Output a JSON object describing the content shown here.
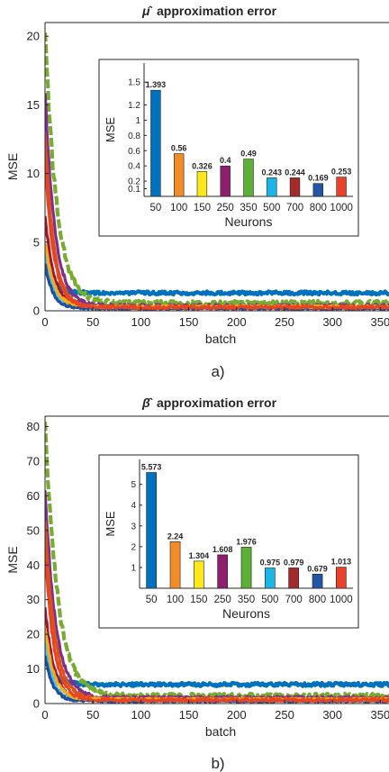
{
  "figure": {
    "label_a": "a)",
    "label_b": "b)"
  },
  "chart_data": [
    {
      "id": "a_main",
      "type": "line",
      "title_symbol": "μ̂",
      "title_rest": "approximation error",
      "xlabel": "batch",
      "ylabel": "MSE",
      "xlim": [
        0,
        360
      ],
      "ylim": [
        0,
        21
      ],
      "xticks": [
        0,
        50,
        100,
        150,
        200,
        250,
        300,
        350
      ],
      "yticks": [
        0,
        5,
        10,
        15,
        20
      ],
      "series": [
        {
          "color": "#0072BD",
          "start": 3.0,
          "tail": 1.3,
          "decay": 10,
          "noise": 0.12
        },
        {
          "color": "#77AC30",
          "start": 20.5,
          "tail": 0.55,
          "decay": 12,
          "noise": 0.18
        },
        {
          "color": "#7E2F8E",
          "start": 16.0,
          "tail": 0.35,
          "decay": 10,
          "noise": 0.12
        },
        {
          "color": "#D95319",
          "start": 13.0,
          "tail": 0.28,
          "decay": 9,
          "noise": 0.1
        },
        {
          "color": "#4DBEEE",
          "start": 4.5,
          "tail": 0.25,
          "decay": 8,
          "noise": 0.08
        },
        {
          "color": "#A2142F",
          "start": 7.0,
          "tail": 0.24,
          "decay": 9,
          "noise": 0.08
        },
        {
          "color": "#1F4E9E",
          "start": 3.5,
          "tail": 0.17,
          "decay": 8,
          "noise": 0.06
        },
        {
          "color": "#EDB120",
          "start": 5.0,
          "tail": 0.3,
          "decay": 9,
          "noise": 0.08
        },
        {
          "color": "#E8441F",
          "start": 11.0,
          "tail": 0.25,
          "decay": 9,
          "noise": 0.1
        }
      ]
    },
    {
      "id": "a_inset",
      "type": "bar",
      "xlabel": "Neurons",
      "ylabel": "MSE",
      "ylim": [
        0,
        1.75
      ],
      "yticks": [
        0.1,
        0.2,
        0.4,
        0.6,
        0.8,
        1,
        1.2,
        1.5
      ],
      "categories": [
        "50",
        "100",
        "150",
        "250",
        "350",
        "500",
        "700",
        "800",
        "1000"
      ],
      "values": [
        1.393,
        0.56,
        0.326,
        0.4,
        0.49,
        0.243,
        0.244,
        0.169,
        0.253
      ],
      "value_labels": [
        "1.393",
        "0.56",
        "0.326",
        "0.4",
        "0.49",
        "0.243",
        "0.244",
        "0.169",
        "0.253"
      ],
      "colors": [
        "#0072BD",
        "#F28C28",
        "#FFE81A",
        "#8E1E6E",
        "#5BB035",
        "#1AB6E8",
        "#A52A2A",
        "#2456A6",
        "#E8432A"
      ]
    },
    {
      "id": "b_main",
      "type": "line",
      "title_symbol": "β̂",
      "title_rest": "approximation error",
      "xlabel": "batch",
      "ylabel": "MSE",
      "xlim": [
        0,
        360
      ],
      "ylim": [
        0,
        83
      ],
      "xticks": [
        0,
        50,
        100,
        150,
        200,
        250,
        300,
        350
      ],
      "yticks": [
        0,
        10,
        20,
        30,
        40,
        50,
        60,
        70,
        80
      ],
      "series": [
        {
          "color": "#0072BD",
          "start": 13,
          "tail": 5.5,
          "decay": 10,
          "noise": 0.5
        },
        {
          "color": "#77AC30",
          "start": 82,
          "tail": 2.2,
          "decay": 13,
          "noise": 0.7
        },
        {
          "color": "#7E2F8E",
          "start": 62,
          "tail": 1.6,
          "decay": 11,
          "noise": 0.5
        },
        {
          "color": "#D95319",
          "start": 53,
          "tail": 1.3,
          "decay": 10,
          "noise": 0.4
        },
        {
          "color": "#4DBEEE",
          "start": 18,
          "tail": 1.0,
          "decay": 8,
          "noise": 0.3
        },
        {
          "color": "#A2142F",
          "start": 28,
          "tail": 1.0,
          "decay": 9,
          "noise": 0.3
        },
        {
          "color": "#1F4E9E",
          "start": 14,
          "tail": 0.7,
          "decay": 8,
          "noise": 0.25
        },
        {
          "color": "#EDB120",
          "start": 22,
          "tail": 1.2,
          "decay": 9,
          "noise": 0.3
        },
        {
          "color": "#E8441F",
          "start": 45,
          "tail": 1.0,
          "decay": 9,
          "noise": 0.4
        }
      ]
    },
    {
      "id": "b_inset",
      "type": "bar",
      "xlabel": "Neurons",
      "ylabel": "MSE",
      "ylim": [
        0,
        6.2
      ],
      "yticks": [
        1,
        2,
        3,
        4,
        5
      ],
      "categories": [
        "50",
        "100",
        "150",
        "250",
        "350",
        "500",
        "700",
        "800",
        "1000"
      ],
      "values": [
        5.573,
        2.24,
        1.304,
        1.608,
        1.976,
        0.975,
        0.979,
        0.679,
        1.013
      ],
      "value_labels": [
        "5.573",
        "2.24",
        "1.304",
        "1.608",
        "1.976",
        "0.975",
        "0.979",
        "0.679",
        "1.013"
      ],
      "colors": [
        "#0072BD",
        "#F28C28",
        "#FFE81A",
        "#8E1E6E",
        "#5BB035",
        "#1AB6E8",
        "#A52A2A",
        "#2456A6",
        "#E8432A"
      ]
    }
  ]
}
